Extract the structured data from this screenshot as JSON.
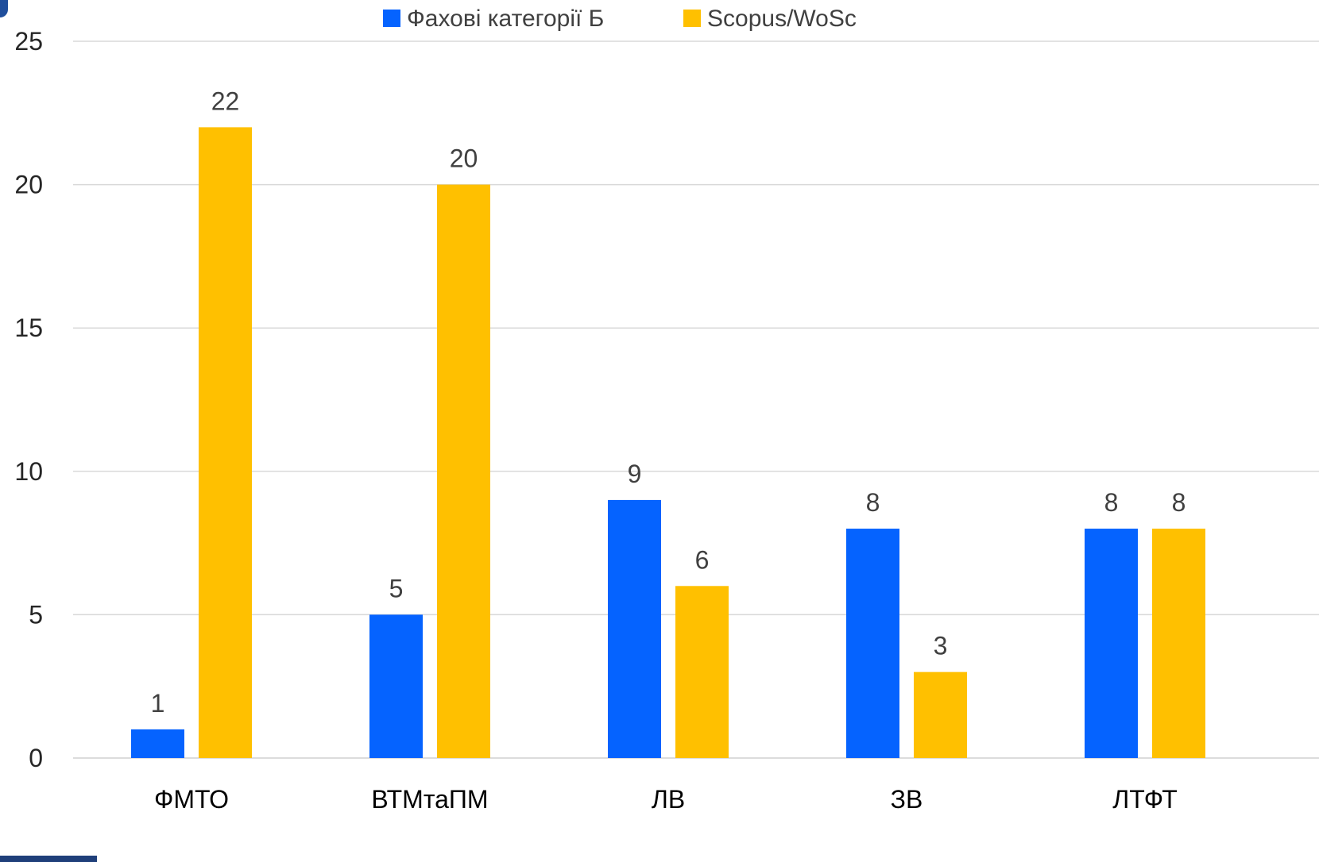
{
  "chart_data": {
    "type": "bar",
    "categories": [
      "ФМТО",
      "ВТМтаПМ",
      "ЛВ",
      "ЗВ",
      "ЛТФТ"
    ],
    "series": [
      {
        "name": "Фахові категорії Б",
        "color": "#0563FF",
        "values": [
          1,
          5,
          9,
          8,
          8
        ]
      },
      {
        "name": "Scopus/WoSc",
        "color": "#FFC000",
        "values": [
          22,
          20,
          6,
          3,
          8
        ]
      }
    ],
    "yticks": [
      0,
      5,
      10,
      15,
      20,
      25
    ],
    "ylim": [
      0,
      25
    ],
    "grid": true,
    "legend_position": "top",
    "data_labels": true
  }
}
